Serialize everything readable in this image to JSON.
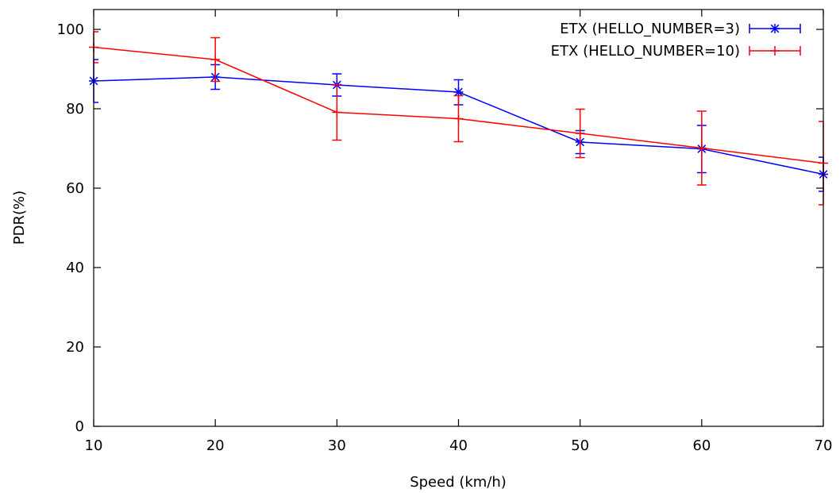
{
  "chart_data": {
    "type": "line",
    "title": "",
    "xlabel": "Speed (km/h)",
    "ylabel": "PDR(%)",
    "xlim": [
      10,
      70
    ],
    "ylim": [
      0,
      105
    ],
    "x_ticks": [
      10,
      20,
      30,
      40,
      50,
      60,
      70
    ],
    "y_ticks": [
      0,
      20,
      40,
      60,
      80,
      100
    ],
    "grid": false,
    "legend_position": "top-right",
    "series": [
      {
        "name": "ETX (HELLO_NUMBER=3)",
        "color": "#0000ff",
        "marker": "asterisk",
        "x": [
          10,
          20,
          30,
          40,
          50,
          60,
          70
        ],
        "y": [
          87.0,
          88.0,
          86.0,
          84.2,
          71.6,
          69.9,
          63.5
        ],
        "error_low": [
          81.6,
          84.9,
          83.2,
          81.0,
          68.7,
          63.9,
          59.2
        ],
        "error_high": [
          92.4,
          91.1,
          88.8,
          87.3,
          74.5,
          75.8,
          67.8
        ]
      },
      {
        "name": "ETX (HELLO_NUMBER=10)",
        "color": "#ff0000",
        "marker": "plus",
        "x": [
          10,
          20,
          30,
          40,
          50,
          60,
          70
        ],
        "y": [
          95.5,
          92.4,
          79.1,
          77.5,
          73.8,
          70.1,
          66.3
        ],
        "error_low": [
          91.6,
          86.9,
          72.1,
          71.7,
          67.7,
          60.8,
          55.8
        ],
        "error_high": [
          99.4,
          97.9,
          86.1,
          83.3,
          79.9,
          79.4,
          76.8
        ]
      }
    ]
  }
}
